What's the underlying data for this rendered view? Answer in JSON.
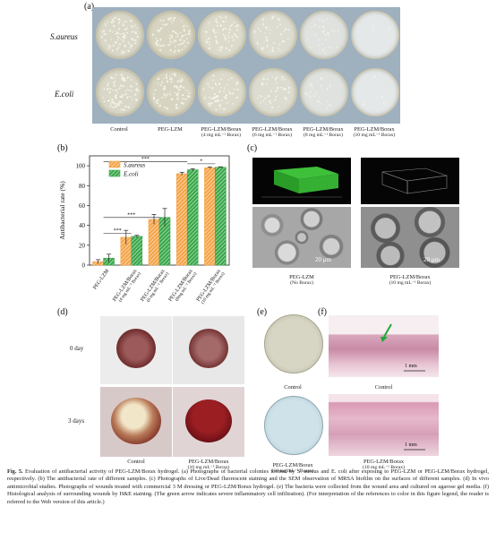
{
  "panels": {
    "a": "(a)",
    "b": "(b)",
    "c": "(c)",
    "d": "(d)",
    "e": "(e)",
    "f": "(f)"
  },
  "panel_a": {
    "rows": [
      "S.aureus",
      "E.coli"
    ],
    "columns": [
      {
        "main": "Control",
        "sub": ""
      },
      {
        "main": "PEG-LZM",
        "sub": ""
      },
      {
        "main": "PEG-LZM/Borax",
        "sub": "(4 mg mL⁻¹ Borax)"
      },
      {
        "main": "PEG-LZM/Borax",
        "sub": "(6 mg mL⁻¹ Borax)"
      },
      {
        "main": "PEG-LZM/Borax",
        "sub": "(8 mg mL⁻¹ Borax)"
      },
      {
        "main": "PEG-LZM/Borax",
        "sub": "(10 mg mL⁻¹ Borax)"
      }
    ]
  },
  "chart_data": {
    "type": "bar",
    "ylabel": "Antibacterial rate (%)",
    "ylim": [
      0,
      110
    ],
    "yticks": [
      0,
      20,
      40,
      60,
      80,
      100
    ],
    "categories": [
      "PEG-LZM",
      "PEG-LZM/Borax (4 mg mL⁻¹ Borax)",
      "PEG-LZM/Borax (6 mg mL⁻¹ Borax)",
      "PEG-LZM/Borax (8mg mL⁻¹ Borax)",
      "PEG-LZM/Borax (10 mg mL⁻¹ Borax)"
    ],
    "tick_labels": [
      {
        "main": "PEG-LZM",
        "sub": ""
      },
      {
        "main": "PEG-LZM/Borax",
        "sub": "(4 mg mL⁻¹ Borax)"
      },
      {
        "main": "PEG-LZM/Borax",
        "sub": "(6 mg mL⁻¹ Borax)"
      },
      {
        "main": "PEG-LZM/Borax",
        "sub": "(8mg mL⁻¹ Borax)"
      },
      {
        "main": "PEG-LZM/Borax",
        "sub": "(10 mg mL⁻¹ Borax)"
      }
    ],
    "series": [
      {
        "name": "S.aureus",
        "color": "#f5a54a",
        "values": [
          3.5,
          28,
          46,
          92,
          98
        ],
        "errors": [
          2,
          7,
          5,
          1.5,
          0.7
        ]
      },
      {
        "name": "E.coli",
        "color": "#3aa84a",
        "values": [
          7,
          29,
          48,
          96,
          98.5
        ],
        "errors": [
          4,
          1,
          9,
          1,
          0.5
        ]
      }
    ],
    "significance": [
      "***",
      "***",
      "***",
      "*"
    ],
    "legend_position": "top-left"
  },
  "panel_c": {
    "labels": [
      {
        "main": "PEG-LZM",
        "sub": "(No Borax)"
      },
      {
        "main": "PEG-LZM/Borax",
        "sub": "(10 mg mL⁻¹ Borax)"
      }
    ],
    "scale": "20 μm"
  },
  "panel_d": {
    "rows": [
      "0 day",
      "3 days"
    ],
    "cols": [
      {
        "main": "Control",
        "sub": ""
      },
      {
        "main": "PEG-LZM/Borax",
        "sub": "(10 mg mL⁻¹ Borax)"
      }
    ]
  },
  "panel_e": {
    "labels": [
      {
        "main": "Control",
        "sub": ""
      },
      {
        "main": "PEG-LZM/Borax",
        "sub": "(10 mg mL⁻¹ Borax)"
      }
    ]
  },
  "panel_f": {
    "labels": [
      {
        "main": "Control",
        "sub": ""
      },
      {
        "main": "PEG-LZM/Borax",
        "sub": "(10 mg mL⁻¹ Borax)"
      }
    ],
    "scale": "1 mm"
  },
  "caption": {
    "fig": "Fig. 5.",
    "text": " Evaluation of antibacterial activity of PEG-LZM/Borax hydrogel. (a) Photographs of bacterial colonies formed by S. aureus and E. coli after exposing to PEG-LZM or PEG-LZM/Borax hydrogel, respectively. (b) The antibacterial rate of different samples. (c) Photographs of Live/Dead fluorescent staining and the SEM observation of MRSA biofilm on the surfaces of different samples. (d) In vivo antimicrobial studies. Photographs of wounds treated with commercial 3 M dressing or PEG-LZM/Borax hydrogel. (e) The bacteria were collected from the wound area and cultured on agarose gel media. (f) Histological analysis of surrounding wounds by H&E staining. (The green arrow indicates severe inflammatory cell infiltration). (For interpretation of the references to color in this figure legend, the reader is referred to the Web version of this article.)"
  }
}
